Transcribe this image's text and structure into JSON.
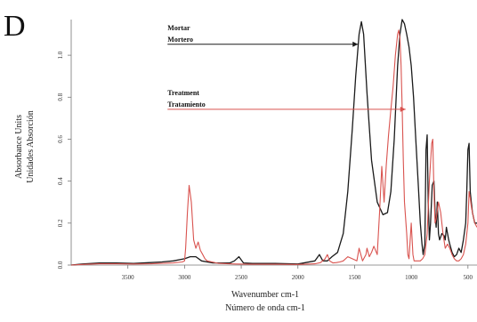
{
  "panel_label": "D",
  "chart_data": {
    "type": "line",
    "xlabel": "Wavenumber cm-1",
    "xlabel_es": "Número de onda cm-1",
    "ylabel": "Absorbance Units",
    "ylabel_es": "Unidades Absorción",
    "x_reversed": true,
    "xlim": [
      4000,
      420
    ],
    "ylim": [
      0,
      1.17
    ],
    "x_ticks": [
      3500,
      3000,
      2500,
      2000,
      1500,
      1000,
      500
    ],
    "y_ticks": [
      0.0,
      0.2,
      0.4,
      0.6,
      0.8,
      1.0
    ],
    "grid": false,
    "series": [
      {
        "name": "Mortar",
        "name_es": "Mortero",
        "color": "#1a1a1a",
        "x": [
          4000,
          3900,
          3750,
          3600,
          3450,
          3300,
          3200,
          3100,
          3000,
          2950,
          2900,
          2850,
          2750,
          2600,
          2560,
          2520,
          2480,
          2400,
          2200,
          2000,
          1850,
          1810,
          1780,
          1740,
          1700,
          1650,
          1600,
          1560,
          1520,
          1490,
          1460,
          1440,
          1420,
          1390,
          1350,
          1300,
          1250,
          1210,
          1180,
          1150,
          1120,
          1100,
          1080,
          1060,
          1040,
          1020,
          1000,
          980,
          960,
          940,
          920,
          905,
          895,
          880,
          870,
          860,
          850,
          840,
          830,
          815,
          800,
          790,
          780,
          770,
          760,
          750,
          730,
          710,
          700,
          690,
          680,
          670,
          660,
          640,
          620,
          600,
          580,
          560,
          540,
          520,
          510,
          500,
          490,
          480,
          470,
          460,
          440,
          420
        ],
        "values": [
          0.0,
          0.005,
          0.01,
          0.01,
          0.008,
          0.012,
          0.015,
          0.02,
          0.03,
          0.04,
          0.04,
          0.02,
          0.01,
          0.01,
          0.02,
          0.04,
          0.01,
          0.008,
          0.008,
          0.005,
          0.02,
          0.05,
          0.02,
          0.02,
          0.04,
          0.06,
          0.15,
          0.35,
          0.65,
          0.9,
          1.1,
          1.16,
          1.1,
          0.82,
          0.5,
          0.3,
          0.24,
          0.25,
          0.35,
          0.6,
          0.95,
          1.1,
          1.17,
          1.15,
          1.1,
          1.04,
          0.95,
          0.8,
          0.6,
          0.4,
          0.2,
          0.1,
          0.05,
          0.1,
          0.55,
          0.62,
          0.3,
          0.12,
          0.2,
          0.38,
          0.4,
          0.25,
          0.18,
          0.3,
          0.15,
          0.12,
          0.15,
          0.14,
          0.12,
          0.18,
          0.15,
          0.12,
          0.1,
          0.06,
          0.04,
          0.05,
          0.08,
          0.06,
          0.12,
          0.2,
          0.35,
          0.55,
          0.58,
          0.35,
          0.3,
          0.25,
          0.2,
          0.2
        ]
      },
      {
        "name": "Treatment",
        "name_es": "Tratamiento",
        "color": "#d9534f",
        "x": [
          4000,
          3900,
          3750,
          3600,
          3450,
          3300,
          3200,
          3100,
          3020,
          3000,
          2990,
          2975,
          2960,
          2940,
          2920,
          2900,
          2880,
          2860,
          2840,
          2820,
          2800,
          2700,
          2550,
          2400,
          2200,
          2000,
          1850,
          1800,
          1760,
          1740,
          1720,
          1690,
          1660,
          1630,
          1600,
          1560,
          1520,
          1480,
          1460,
          1430,
          1400,
          1390,
          1370,
          1350,
          1330,
          1300,
          1280,
          1260,
          1240,
          1220,
          1200,
          1180,
          1160,
          1140,
          1120,
          1110,
          1100,
          1090,
          1080,
          1070,
          1060,
          1040,
          1030,
          1020,
          1000,
          985,
          975,
          960,
          940,
          920,
          900,
          880,
          860,
          840,
          820,
          810,
          800,
          790,
          780,
          760,
          740,
          720,
          700,
          680,
          660,
          640,
          620,
          600,
          580,
          560,
          540,
          520,
          500,
          490,
          480,
          470,
          460,
          440,
          420
        ],
        "values": [
          0.0,
          0.003,
          0.006,
          0.006,
          0.005,
          0.006,
          0.008,
          0.01,
          0.015,
          0.02,
          0.08,
          0.25,
          0.38,
          0.3,
          0.12,
          0.08,
          0.11,
          0.07,
          0.05,
          0.03,
          0.02,
          0.008,
          0.005,
          0.004,
          0.004,
          0.003,
          0.006,
          0.012,
          0.03,
          0.05,
          0.02,
          0.01,
          0.012,
          0.015,
          0.02,
          0.04,
          0.03,
          0.02,
          0.08,
          0.02,
          0.05,
          0.08,
          0.04,
          0.06,
          0.09,
          0.05,
          0.25,
          0.47,
          0.3,
          0.48,
          0.62,
          0.74,
          0.85,
          1.0,
          1.1,
          1.12,
          1.08,
          0.95,
          0.75,
          0.5,
          0.3,
          0.15,
          0.05,
          0.03,
          0.2,
          0.05,
          0.02,
          0.02,
          0.02,
          0.02,
          0.03,
          0.05,
          0.15,
          0.4,
          0.58,
          0.6,
          0.35,
          0.2,
          0.22,
          0.3,
          0.25,
          0.15,
          0.08,
          0.1,
          0.08,
          0.05,
          0.03,
          0.02,
          0.02,
          0.03,
          0.05,
          0.1,
          0.2,
          0.35,
          0.32,
          0.28,
          0.25,
          0.2,
          0.18
        ]
      }
    ],
    "annotations": [
      {
        "lines": [
          "Mortar",
          "Mortero"
        ],
        "color": "#1a1a1a",
        "text_x": 3150,
        "text_y": 1.12,
        "arrow_to_x": 1470,
        "arrow_to_y": 1.02
      },
      {
        "lines": [
          "Treatment",
          "Tratamiento"
        ],
        "color": "#d9534f",
        "text_x": 3150,
        "text_y": 0.81,
        "arrow_to_x": 1050,
        "arrow_to_y": 0.71
      }
    ]
  }
}
